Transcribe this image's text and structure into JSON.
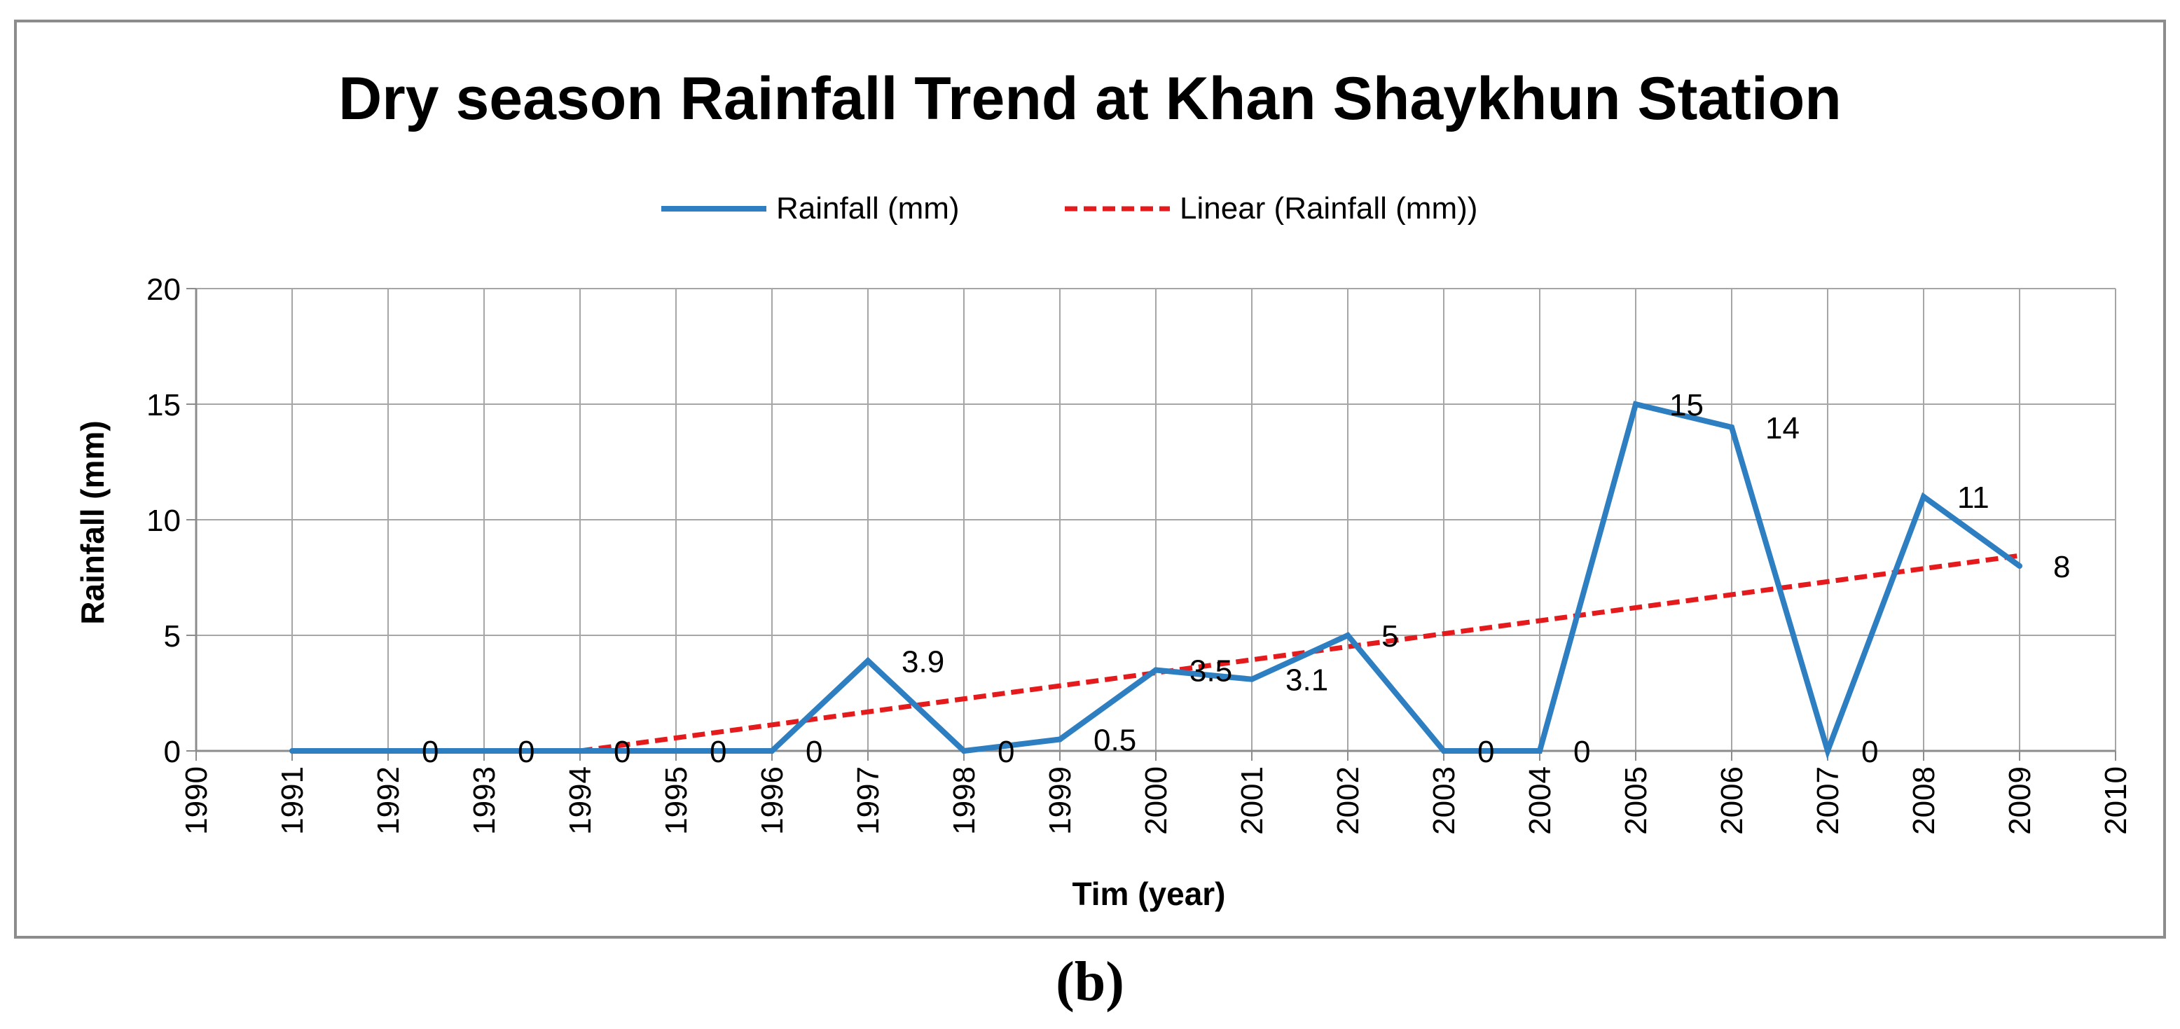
{
  "caption": "(b)",
  "chart_data": {
    "type": "line",
    "title": "Dry season Rainfall Trend at Khan Shaykhun Station",
    "xlabel": "Tim (year)",
    "ylabel": "Rainfall (mm)",
    "xlim": [
      1990,
      2010
    ],
    "ylim": [
      0,
      20
    ],
    "x_ticks": [
      1990,
      1991,
      1992,
      1993,
      1994,
      1995,
      1996,
      1997,
      1998,
      1999,
      2000,
      2001,
      2002,
      2003,
      2004,
      2005,
      2006,
      2007,
      2008,
      2009,
      2010
    ],
    "y_ticks": [
      0,
      5,
      10,
      15,
      20
    ],
    "grid": true,
    "legend_position": "top-center",
    "series": [
      {
        "name": "Rainfall (mm)",
        "color": "#2E7FC1",
        "style": "solid",
        "x": [
          1991,
          1992,
          1993,
          1994,
          1995,
          1996,
          1997,
          1998,
          1999,
          2000,
          2001,
          2002,
          2003,
          2004,
          2005,
          2006,
          2007,
          2008,
          2009
        ],
        "y": [
          0,
          0,
          0,
          0,
          0,
          0,
          3.9,
          0,
          0.5,
          3.5,
          3.1,
          5,
          0,
          0,
          15,
          14,
          0,
          11,
          8
        ],
        "labels": [
          "0",
          "0",
          "0",
          "0",
          "0",
          "0",
          "3.9",
          "0",
          "0.5",
          "3.5",
          "3.1",
          "5",
          "0",
          "0",
          "15",
          "14",
          "0",
          "11",
          "8"
        ],
        "show_labels": [
          false,
          true,
          true,
          true,
          true,
          true,
          true,
          true,
          true,
          true,
          true,
          true,
          true,
          true,
          true,
          true,
          true,
          true,
          true
        ]
      },
      {
        "name": "Linear (Rainfall (mm))",
        "color": "#E41A1C",
        "style": "dashed",
        "x": [
          1994,
          2009
        ],
        "y": [
          0,
          8.45
        ]
      }
    ]
  }
}
